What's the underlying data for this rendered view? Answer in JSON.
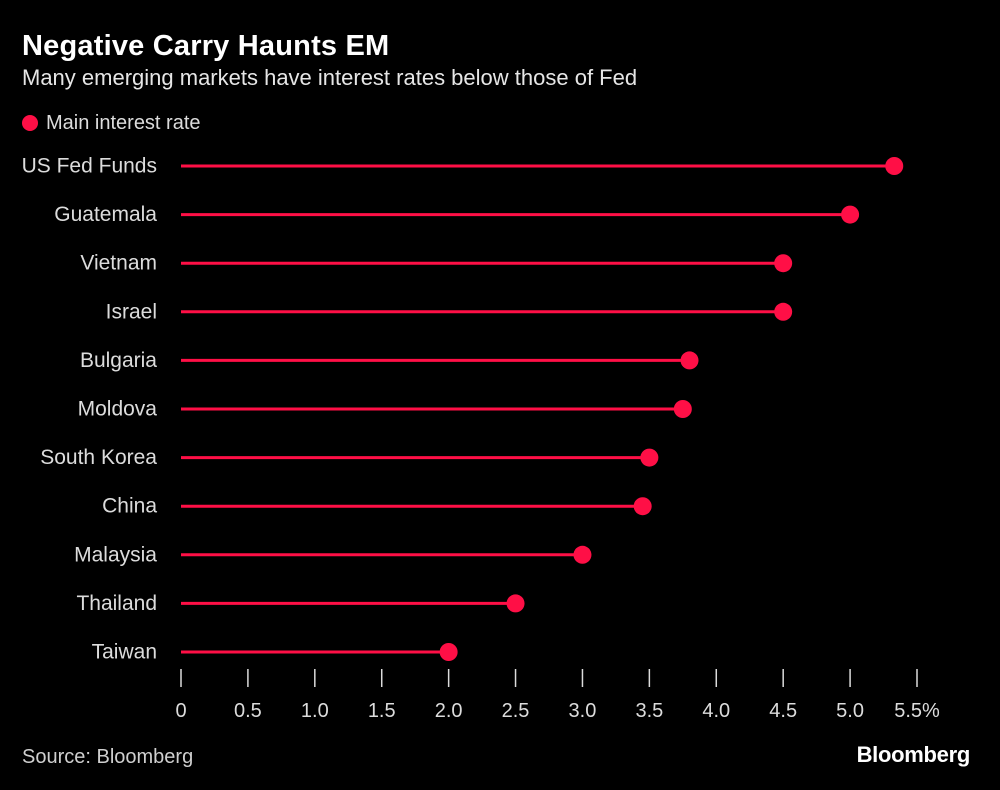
{
  "header": {
    "title": "Negative Carry Haunts EM",
    "subtitle": "Many emerging markets have interest rates below those of Fed"
  },
  "footer": {
    "source": "Source: Bloomberg",
    "brand": "Bloomberg"
  },
  "colors": {
    "background": "#000000",
    "accent": "#ff0f46",
    "text": "#dcdcdc",
    "axis": "#dcdcdc"
  },
  "chart_data": {
    "type": "lollipop",
    "orientation": "horizontal",
    "title": "Negative Carry Haunts EM",
    "subtitle": "Many emerging markets have interest rates below those of Fed",
    "categories": [
      "US Fed Funds",
      "Guatemala",
      "Vietnam",
      "Israel",
      "Bulgaria",
      "Moldova",
      "South Korea",
      "China",
      "Malaysia",
      "Thailand",
      "Taiwan"
    ],
    "series": [
      {
        "name": "Main interest rate",
        "values": [
          5.33,
          5.0,
          4.5,
          4.5,
          3.8,
          3.75,
          3.5,
          3.45,
          3.0,
          2.5,
          2.0
        ]
      }
    ],
    "xlim": [
      0,
      5.5
    ],
    "xticks": [
      0,
      0.5,
      1.0,
      1.5,
      2.0,
      2.5,
      3.0,
      3.5,
      4.0,
      4.5,
      5.0,
      5.5
    ],
    "xtick_labels": [
      "0",
      "0.5",
      "1.0",
      "1.5",
      "2.0",
      "2.5",
      "3.0",
      "3.5",
      "4.0",
      "4.5",
      "5.0",
      "5.5%"
    ],
    "grid": false,
    "legend_position": "top-left"
  }
}
